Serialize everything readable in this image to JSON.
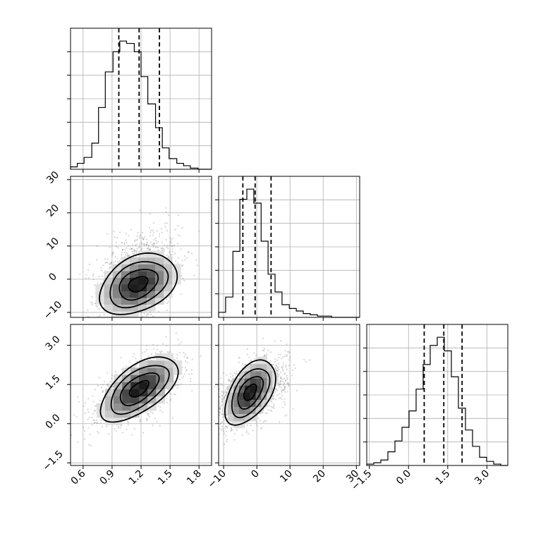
{
  "chart_data": {
    "type": "corner",
    "parameters": [
      {
        "id": "p1",
        "range": [
          0.47,
          1.93
        ],
        "ticks": [
          0.6,
          0.9,
          1.2,
          1.5,
          1.8
        ],
        "tick_labels": [
          "0.6",
          "0.9",
          "1.2",
          "1.5",
          "1.8"
        ],
        "quantiles": [
          0.97,
          1.18,
          1.39
        ],
        "hist": {
          "edges": [
            0.47,
            0.54,
            0.61,
            0.69,
            0.76,
            0.83,
            0.91,
            0.98,
            1.05,
            1.13,
            1.2,
            1.27,
            1.35,
            1.42,
            1.49,
            1.57,
            1.64,
            1.71,
            1.79,
            1.86,
            1.93
          ],
          "counts": [
            2,
            5,
            10,
            22,
            52,
            82,
            99,
            108,
            106,
            99,
            78,
            55,
            35,
            18,
            9,
            5,
            3,
            1,
            0,
            0
          ]
        }
      },
      {
        "id": "p2",
        "range": [
          -11.5,
          31
        ],
        "ticks": [
          -10,
          0,
          10,
          20,
          30
        ],
        "tick_labels": [
          "−10",
          "0",
          "10",
          "20",
          "30"
        ],
        "quantiles": [
          -4.2,
          -0.5,
          4.3
        ],
        "hist": {
          "edges": [
            -11.5,
            -9.4,
            -7.2,
            -5.1,
            -3.0,
            -0.9,
            1.3,
            3.4,
            5.5,
            7.6,
            9.8,
            11.9,
            14.0,
            16.1,
            18.3,
            20.4,
            22.5,
            24.6,
            26.8,
            28.9,
            31.0
          ],
          "counts": [
            4,
            16,
            52,
            93,
            101,
            90,
            60,
            34,
            20,
            10,
            7,
            5,
            3,
            2,
            1,
            1,
            0,
            0,
            0,
            0
          ]
        }
      },
      {
        "id": "p3",
        "range": [
          -1.6,
          3.8
        ],
        "ticks": [
          -1.5,
          0.0,
          1.5,
          3.0
        ],
        "tick_labels": [
          "−1.5",
          "0.0",
          "1.5",
          "3.0"
        ],
        "quantiles": [
          0.6,
          1.35,
          2.05
        ],
        "hist": {
          "edges": [
            -1.6,
            -1.33,
            -1.06,
            -0.79,
            -0.52,
            -0.25,
            0.02,
            0.29,
            0.56,
            0.83,
            1.1,
            1.37,
            1.64,
            1.91,
            2.18,
            2.45,
            2.72,
            2.99,
            3.26,
            3.53,
            3.8
          ],
          "counts": [
            1,
            2,
            4,
            10,
            18,
            28,
            40,
            56,
            74,
            88,
            94,
            84,
            65,
            42,
            26,
            14,
            6,
            3,
            1,
            0
          ]
        }
      }
    ],
    "pairs": [
      {
        "x": "p1",
        "y": "p2",
        "center": [
          1.17,
          -1.5
        ],
        "sd": [
          0.2,
          4.6
        ],
        "corr": 0.35,
        "scatter_spread": [
          0.21,
          6.5
        ]
      },
      {
        "x": "p1",
        "y": "p3",
        "center": [
          1.18,
          1.33
        ],
        "sd": [
          0.2,
          0.62
        ],
        "corr": 0.6,
        "scatter_spread": [
          0.21,
          0.64
        ]
      },
      {
        "x": "p2",
        "y": "p3",
        "center": [
          -2.0,
          1.2
        ],
        "sd": [
          3.8,
          0.62
        ],
        "corr": 0.5,
        "scatter_spread": [
          5.5,
          0.64
        ]
      }
    ],
    "contour_levels": [
      0.5,
      1.0,
      1.5,
      2.0
    ],
    "grid": true,
    "legend": "none"
  }
}
